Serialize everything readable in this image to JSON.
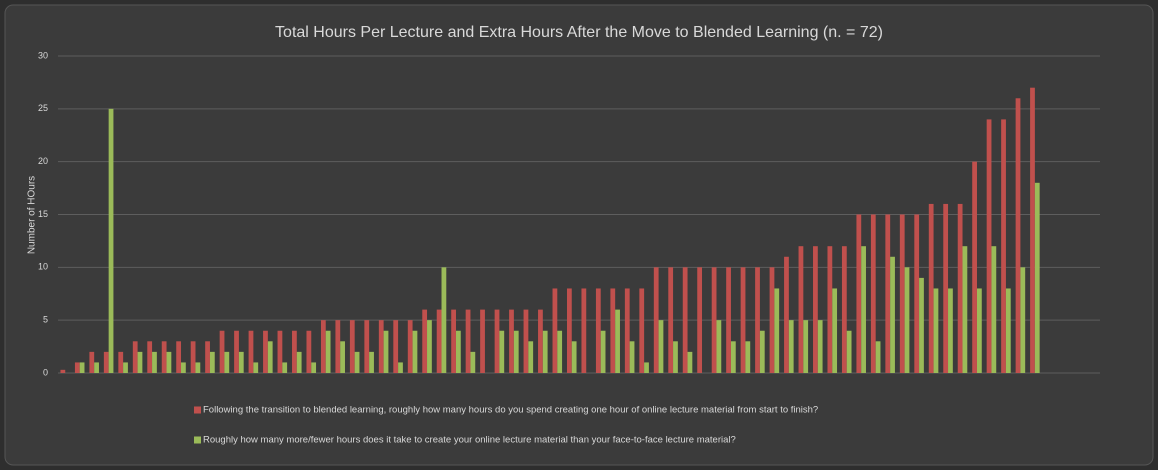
{
  "chart_data": {
    "type": "bar",
    "title": "Total Hours Per Lecture and Extra Hours After the Move to Blended Learning (n. = 72)",
    "ylabel": "Number of HOurs",
    "categories": [
      null,
      null,
      null,
      null,
      null,
      null,
      null,
      null,
      null,
      null,
      null,
      null,
      null,
      null,
      null,
      null,
      null,
      null,
      null,
      null,
      null,
      null,
      null,
      null,
      null,
      null,
      null,
      null,
      null,
      null,
      null,
      null,
      null,
      null,
      null,
      null,
      null,
      null,
      null,
      null,
      null,
      null,
      null,
      null,
      null,
      null,
      null,
      null,
      null,
      null,
      null,
      null,
      null,
      null,
      null,
      null,
      null,
      null,
      null,
      null,
      null,
      null,
      null,
      null,
      null,
      null,
      null,
      null,
      null,
      null,
      null,
      null
    ],
    "series": [
      {
        "name": "Following the transition to blended learning, roughly how many hours do you spend creating one hour of online lecture material from start to finish?",
        "color": "#c0504d",
        "values": [
          0.3,
          1,
          2,
          2,
          2,
          3,
          3,
          3,
          3,
          3,
          3,
          4,
          4,
          4,
          4,
          4,
          4,
          4,
          5,
          5,
          5,
          5,
          5,
          5,
          5,
          6,
          6,
          6,
          6,
          6,
          6,
          6,
          6,
          6,
          8,
          8,
          8,
          8,
          8,
          8,
          8,
          10,
          10,
          10,
          10,
          10,
          10,
          10,
          10,
          10,
          11,
          12,
          12,
          12,
          12,
          15,
          15,
          15,
          15,
          15,
          16,
          16,
          16,
          20,
          24,
          24,
          26,
          27,
          null,
          null,
          null,
          null
        ]
      },
      {
        "name": "Roughly how many more/fewer hours does it take to create your online lecture material than your face-to-face lecture material?",
        "color": "#9bbb59",
        "values": [
          0,
          1,
          1,
          25,
          1,
          2,
          2,
          2,
          1,
          1,
          2,
          2,
          2,
          1,
          3,
          1,
          2,
          1,
          4,
          3,
          2,
          2,
          4,
          1,
          4,
          5,
          10,
          4,
          2,
          0,
          4,
          4,
          3,
          4,
          4,
          3,
          0,
          4,
          6,
          3,
          1,
          5,
          3,
          2,
          0,
          5,
          3,
          3,
          4,
          8,
          5,
          5,
          5,
          8,
          4,
          12,
          3,
          11,
          10,
          9,
          8,
          8,
          12,
          8,
          12,
          8,
          10,
          18,
          null,
          null,
          null,
          null
        ]
      }
    ],
    "ylim": [
      0,
      30
    ],
    "yticks": [
      0,
      5,
      10,
      15,
      20,
      25,
      30
    ],
    "grid": true,
    "legend": "bottom"
  }
}
